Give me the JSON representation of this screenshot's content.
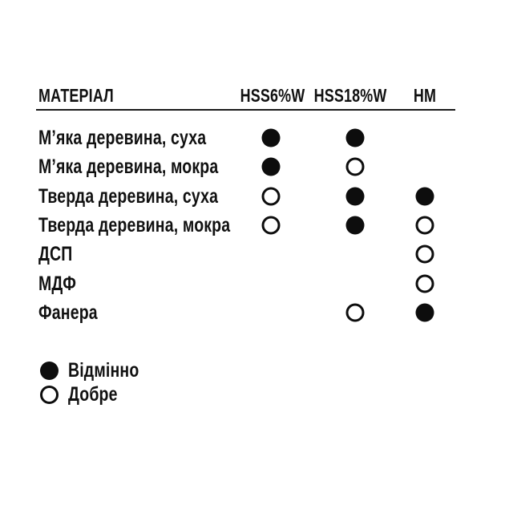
{
  "chart_data": {
    "type": "table",
    "header": {
      "material_label": "МАТЕРІАЛ",
      "columns": [
        "HSS6%W",
        "HSS18%W",
        "HM"
      ]
    },
    "rows": [
      {
        "label": "М’яка деревина, суха",
        "ratings": [
          "excellent",
          "excellent",
          null
        ]
      },
      {
        "label": "М’яка деревина, мокра",
        "ratings": [
          "excellent",
          "good",
          null
        ]
      },
      {
        "label": "Тверда деревина, суха",
        "ratings": [
          "good",
          "excellent",
          "excellent"
        ]
      },
      {
        "label": "Тверда деревина, мокра",
        "ratings": [
          "good",
          "excellent",
          "good"
        ]
      },
      {
        "label": "ДСП",
        "ratings": [
          null,
          null,
          "good"
        ]
      },
      {
        "label": "МДФ",
        "ratings": [
          null,
          null,
          "good"
        ]
      },
      {
        "label": "Фанера",
        "ratings": [
          null,
          "good",
          "excellent"
        ]
      }
    ],
    "rating_scale": {
      "excellent": "filled-circle",
      "good": "hollow-circle"
    },
    "legend": [
      {
        "symbol": "filled-circle",
        "label": "Відмінно"
      },
      {
        "symbol": "hollow-circle",
        "label": "Добре"
      }
    ]
  },
  "colors": {
    "text": "#111111",
    "rule": "#1a1a1a",
    "dot": "#0d0d0d",
    "background": "#ffffff"
  }
}
